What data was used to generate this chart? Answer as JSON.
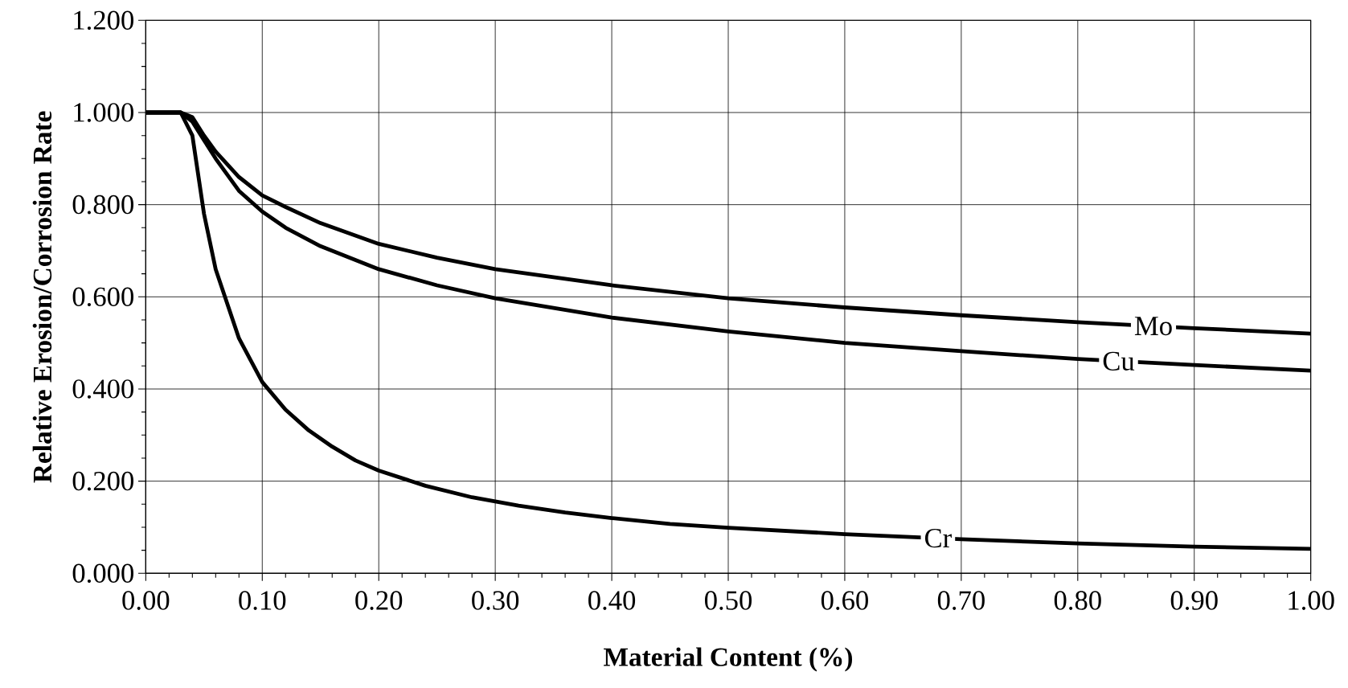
{
  "chart_data": {
    "type": "line",
    "xlabel": "Material Content (%)",
    "ylabel": "Relative Erosion/Corrosion Rate",
    "xlim": [
      0,
      1
    ],
    "ylim": [
      0,
      1.2
    ],
    "xticks": [
      {
        "value": 0,
        "label": "0.00"
      },
      {
        "value": 0.1,
        "label": "0.10"
      },
      {
        "value": 0.2,
        "label": "0.20"
      },
      {
        "value": 0.3,
        "label": "0.30"
      },
      {
        "value": 0.4,
        "label": "0.40"
      },
      {
        "value": 0.5,
        "label": "0.50"
      },
      {
        "value": 0.6,
        "label": "0.60"
      },
      {
        "value": 0.7,
        "label": "0.70"
      },
      {
        "value": 0.8,
        "label": "0.80"
      },
      {
        "value": 0.9,
        "label": "0.90"
      },
      {
        "value": 1,
        "label": "1.00"
      }
    ],
    "yticks": [
      {
        "value": 0,
        "label": "0.000"
      },
      {
        "value": 0.2,
        "label": "0.200"
      },
      {
        "value": 0.4,
        "label": "0.400"
      },
      {
        "value": 0.6,
        "label": "0.600"
      },
      {
        "value": 0.8,
        "label": "0.800"
      },
      {
        "value": 1,
        "label": "1.000"
      },
      {
        "value": 1.2,
        "label": "1.200"
      }
    ],
    "grid": true,
    "marker": "none",
    "line_style": "solid",
    "series": [
      {
        "name": "Mo",
        "color": "#000000",
        "x": [
          0,
          0.03,
          0.04,
          0.05,
          0.06,
          0.08,
          0.1,
          0.12,
          0.15,
          0.2,
          0.25,
          0.3,
          0.4,
          0.5,
          0.6,
          0.7,
          0.8,
          0.9,
          1.0
        ],
        "values": [
          1.0,
          1.0,
          0.99,
          0.95,
          0.915,
          0.86,
          0.82,
          0.795,
          0.76,
          0.715,
          0.685,
          0.66,
          0.625,
          0.597,
          0.577,
          0.56,
          0.545,
          0.532,
          0.52
        ]
      },
      {
        "name": "Cu",
        "color": "#000000",
        "x": [
          0,
          0.03,
          0.04,
          0.05,
          0.06,
          0.08,
          0.1,
          0.12,
          0.15,
          0.2,
          0.25,
          0.3,
          0.4,
          0.5,
          0.6,
          0.7,
          0.8,
          0.9,
          1.0
        ],
        "values": [
          1.0,
          1.0,
          0.98,
          0.94,
          0.9,
          0.83,
          0.785,
          0.75,
          0.71,
          0.66,
          0.625,
          0.597,
          0.555,
          0.525,
          0.5,
          0.482,
          0.465,
          0.452,
          0.44
        ]
      },
      {
        "name": "Cr",
        "color": "#000000",
        "x": [
          0,
          0.03,
          0.04,
          0.05,
          0.06,
          0.08,
          0.1,
          0.12,
          0.14,
          0.16,
          0.18,
          0.2,
          0.24,
          0.28,
          0.32,
          0.36,
          0.4,
          0.45,
          0.5,
          0.6,
          0.7,
          0.8,
          0.9,
          1.0
        ],
        "values": [
          1.0,
          1.0,
          0.95,
          0.78,
          0.66,
          0.51,
          0.415,
          0.355,
          0.31,
          0.275,
          0.245,
          0.223,
          0.19,
          0.165,
          0.147,
          0.132,
          0.12,
          0.107,
          0.099,
          0.085,
          0.074,
          0.065,
          0.058,
          0.053
        ]
      }
    ]
  }
}
